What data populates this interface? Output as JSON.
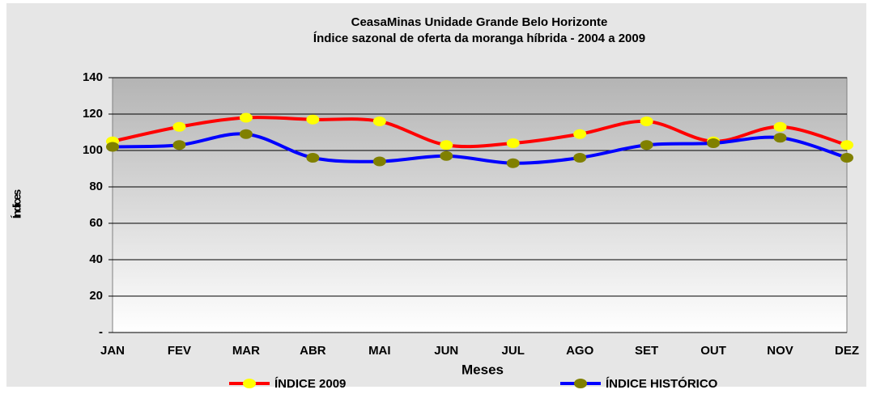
{
  "chart_data": {
    "type": "line",
    "title": "CeasaMinas Unidade Grande Belo Horizonte",
    "subtitle": "Índice sazonal de oferta da moranga híbrida - 2004 a 2009",
    "x_label": "Meses",
    "y_label": "Índices",
    "categories": [
      "JAN",
      "FEV",
      "MAR",
      "ABR",
      "MAI",
      "JUN",
      "JUL",
      "AGO",
      "SET",
      "OUT",
      "NOV",
      "DEZ"
    ],
    "series": [
      {
        "name": "ÍNDICE 2009",
        "color": "#ff0000",
        "marker_color": "#ffff00",
        "values": [
          105,
          113,
          118,
          117,
          116,
          103,
          104,
          109,
          116,
          105,
          113,
          103
        ]
      },
      {
        "name": "ÍNDICE HISTÓRICO",
        "color": "#0000ff",
        "marker_color": "#808000",
        "values": [
          102,
          103,
          109,
          96,
          94,
          97,
          93,
          96,
          103,
          104,
          107,
          96
        ]
      }
    ],
    "ylim": [
      0,
      140
    ],
    "yticks": [
      {
        "value": 0,
        "label": "-"
      },
      20,
      40,
      60,
      80,
      100,
      120,
      140
    ],
    "grid": true,
    "smooth": true,
    "legend": "bottom"
  }
}
